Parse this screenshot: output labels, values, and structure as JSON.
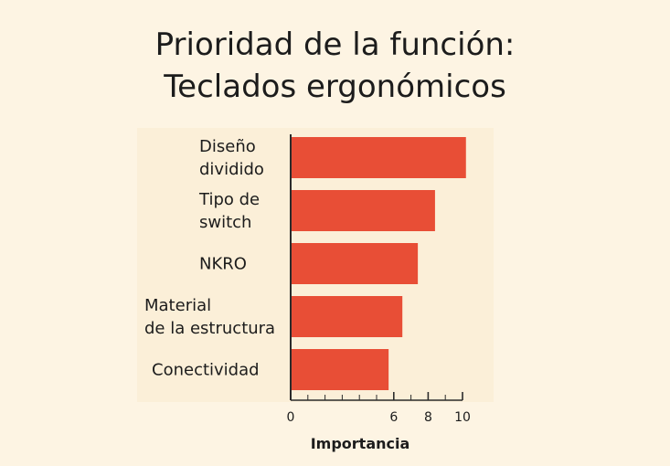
{
  "chart_data": {
    "type": "bar",
    "orientation": "horizontal",
    "title": [
      "Prioridad de la función:",
      "Teclados ergonómicos"
    ],
    "categories": [
      [
        "Diseño",
        "dividido"
      ],
      [
        "Tipo de",
        "switch"
      ],
      [
        "NKRO"
      ],
      [
        "Material",
        "de la estructura"
      ],
      [
        "Conectividad"
      ]
    ],
    "values": [
      10.2,
      8.4,
      7.4,
      6.5,
      5.7
    ],
    "xlabel": "Importancia",
    "ylabel": "",
    "xticks": [
      0,
      6,
      8,
      10
    ],
    "xlim": [
      0,
      10.2
    ],
    "grid": false,
    "bar_color": "#e84e36",
    "axis_color": "#2b2b2b"
  }
}
